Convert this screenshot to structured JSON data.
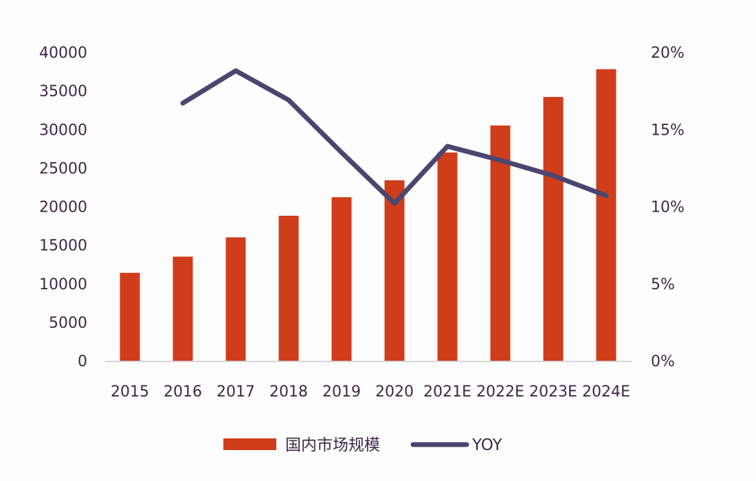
{
  "chart_data": {
    "type": "bar+line",
    "title": "",
    "categories": [
      "2015",
      "2016",
      "2017",
      "2018",
      "2019",
      "2020",
      "2021E",
      "2022E",
      "2023E",
      "2024E"
    ],
    "series": [
      {
        "name": "国内市场规模",
        "type": "bar",
        "axis": "left",
        "color": "#cf3d1a",
        "values": [
          11400,
          13500,
          16000,
          18800,
          21200,
          23400,
          27000,
          30500,
          34200,
          37800
        ]
      },
      {
        "name": "YOY",
        "type": "line",
        "axis": "right",
        "color": "#4a4670",
        "values": [
          null,
          16.7,
          18.8,
          16.9,
          13.5,
          10.2,
          13.9,
          13.0,
          12.0,
          10.7
        ]
      }
    ],
    "left_axis": {
      "ylim": [
        0,
        40000
      ],
      "ticks": [
        "0",
        "5000",
        "10000",
        "15000",
        "20000",
        "25000",
        "30000",
        "35000",
        "40000"
      ]
    },
    "right_axis": {
      "ylim": [
        0,
        20
      ],
      "ticks": [
        "0%",
        "5%",
        "10%",
        "15%",
        "20%"
      ]
    },
    "xlabel": "",
    "ylabel": "",
    "grid": false,
    "legend_position": "bottom"
  },
  "legend": {
    "bar_label": "国内市场规模",
    "line_label": "YOY"
  }
}
